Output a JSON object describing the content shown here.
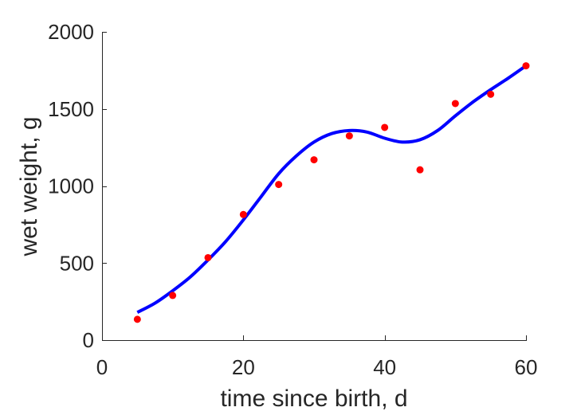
{
  "chart_data": {
    "type": "scatter",
    "xlabel": "time since birth, d",
    "ylabel": "wet weight, g",
    "xlim": [
      0,
      60
    ],
    "ylim": [
      0,
      2000
    ],
    "xticks": [
      0,
      20,
      40,
      60
    ],
    "yticks": [
      0,
      500,
      1000,
      1500,
      2000
    ],
    "grid": false,
    "legend": "none",
    "series": [
      {
        "kind": "points",
        "color": "#ff0000",
        "x": [
          5,
          10,
          15,
          20,
          25,
          30,
          35,
          40,
          45,
          50,
          55,
          60
        ],
        "y": [
          135,
          290,
          535,
          815,
          1010,
          1170,
          1325,
          1380,
          1105,
          1535,
          1595,
          1780
        ]
      },
      {
        "kind": "curve",
        "color": "#0000ff",
        "x": [
          5,
          7.5,
          10,
          12.5,
          15,
          17.5,
          20,
          22.5,
          25,
          27.5,
          30,
          32.5,
          35,
          37.5,
          40,
          42.5,
          45,
          47.5,
          50,
          52.5,
          55,
          57.5,
          60
        ],
        "y": [
          180,
          240,
          320,
          410,
          520,
          640,
          780,
          930,
          1080,
          1195,
          1285,
          1340,
          1360,
          1350,
          1310,
          1285,
          1300,
          1360,
          1455,
          1545,
          1625,
          1700,
          1780
        ]
      }
    ]
  }
}
